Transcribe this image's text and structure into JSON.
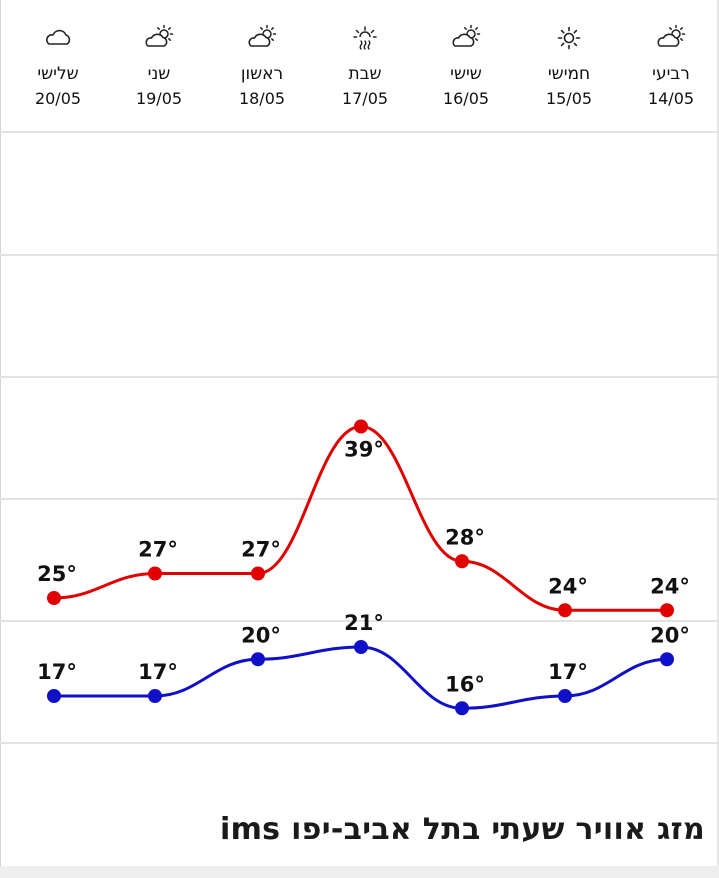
{
  "title": "מזג אוויר שעתי בתל אביב-יפו ims",
  "colors": {
    "high": "#e00000",
    "low": "#1010c8",
    "grid": "#e3e3e3",
    "icon": "#222222"
  },
  "days": [
    {
      "name": "שלישי",
      "date": "20/05",
      "icon": "partly-cloudy-icon"
    },
    {
      "name": "שני",
      "date": "19/05",
      "icon": "partly-sunny-icon"
    },
    {
      "name": "ראשון",
      "date": "18/05",
      "icon": "partly-sunny-icon"
    },
    {
      "name": "שבת",
      "date": "17/05",
      "icon": "hot-haze-icon"
    },
    {
      "name": "שישי",
      "date": "16/05",
      "icon": "partly-sunny-icon"
    },
    {
      "name": "חמישי",
      "date": "15/05",
      "icon": "sun-icon"
    },
    {
      "name": "רביעי",
      "date": "14/05",
      "icon": "partly-sunny-icon"
    }
  ],
  "chart_data": {
    "type": "line",
    "categories": [
      "20/05",
      "19/05",
      "18/05",
      "17/05",
      "16/05",
      "15/05",
      "14/05"
    ],
    "series": [
      {
        "values": [
          25,
          27,
          27,
          39,
          28,
          24,
          24
        ]
      },
      {
        "values": [
          17,
          17,
          20,
          21,
          16,
          17,
          20
        ]
      }
    ],
    "value_suffix": "°",
    "ylim": [
      13,
      42
    ],
    "grid": true,
    "legend": "none"
  }
}
